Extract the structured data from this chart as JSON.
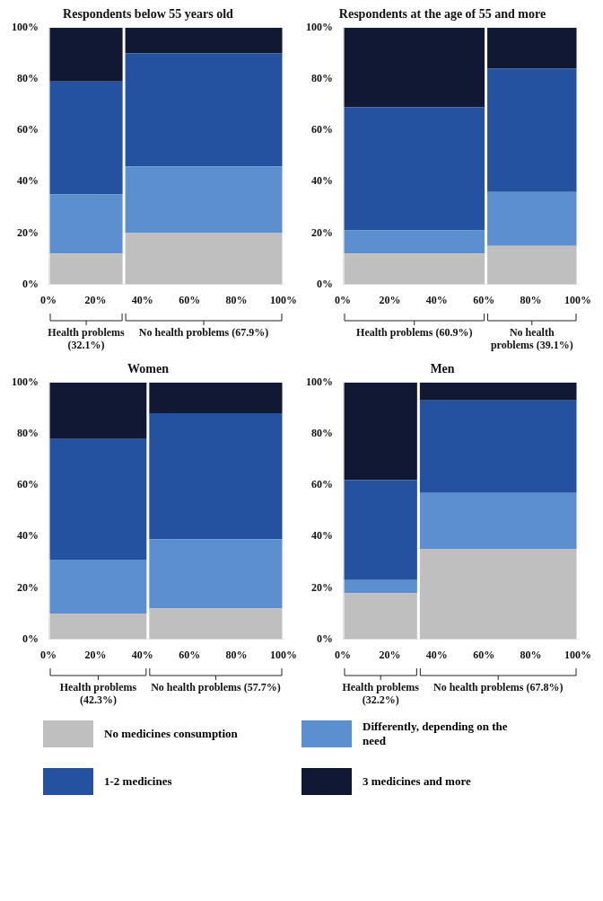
{
  "chart_data": [
    {
      "type": "bar",
      "title": "Respondents below 55 years old",
      "stacked": true,
      "x": [
        16.05,
        66.05
      ],
      "annotations": [
        "Health problems (32.1%)",
        "No health problems (67.9%)"
      ],
      "xlim": [
        0,
        100
      ],
      "xticks": [
        {
          "value": 0,
          "label": "0%"
        },
        {
          "value": 20,
          "label": "20%"
        },
        {
          "value": 40,
          "label": "40%"
        },
        {
          "value": 60,
          "label": "60%"
        },
        {
          "value": 80,
          "label": "80%"
        },
        {
          "value": 100,
          "label": "100%"
        }
      ],
      "ylim": [
        0,
        100
      ],
      "yticks": [
        {
          "value": 0,
          "label": "0%"
        },
        {
          "value": 20,
          "label": "20%"
        },
        {
          "value": 40,
          "label": "40%"
        },
        {
          "value": 60,
          "label": "60%"
        },
        {
          "value": 80,
          "label": "80%"
        },
        {
          "value": 100,
          "label": "100%"
        }
      ],
      "series": [
        {
          "color": "#bfbfbf",
          "values": [
            12,
            20
          ]
        },
        {
          "color": "#5b8fd0",
          "values": [
            23,
            26
          ]
        },
        {
          "color": "#2451a0",
          "values": [
            44,
            44
          ]
        },
        {
          "color": "#111833",
          "values": [
            21,
            10
          ]
        }
      ]
    },
    {
      "type": "bar",
      "title": "Respondents at the age of 55 and more",
      "stacked": true,
      "x": [
        30.45,
        80.45
      ],
      "annotations": [
        "Health problems (60.9%)",
        "No health problems (39.1%)"
      ],
      "xlim": [
        0,
        100
      ],
      "xticks": [
        {
          "value": 0,
          "label": "0%"
        },
        {
          "value": 20,
          "label": "20%"
        },
        {
          "value": 40,
          "label": "40%"
        },
        {
          "value": 60,
          "label": "60%"
        },
        {
          "value": 80,
          "label": "80%"
        },
        {
          "value": 100,
          "label": "100%"
        }
      ],
      "ylim": [
        0,
        100
      ],
      "yticks": [
        {
          "value": 0,
          "label": "0%"
        },
        {
          "value": 20,
          "label": "20%"
        },
        {
          "value": 40,
          "label": "40%"
        },
        {
          "value": 60,
          "label": "60%"
        },
        {
          "value": 80,
          "label": "80%"
        },
        {
          "value": 100,
          "label": "100%"
        }
      ],
      "series": [
        {
          "color": "#bfbfbf",
          "values": [
            12,
            15
          ]
        },
        {
          "color": "#5b8fd0",
          "values": [
            9,
            21
          ]
        },
        {
          "color": "#2451a0",
          "values": [
            48,
            48
          ]
        },
        {
          "color": "#111833",
          "values": [
            31,
            16
          ]
        }
      ]
    },
    {
      "type": "bar",
      "title": "Women",
      "stacked": true,
      "x": [
        21.15,
        71.15
      ],
      "annotations": [
        "Health problems (42.3%)",
        "No health problems (57.7%)"
      ],
      "xlim": [
        0,
        100
      ],
      "xticks": [
        {
          "value": 0,
          "label": "0%"
        },
        {
          "value": 20,
          "label": "20%"
        },
        {
          "value": 40,
          "label": "40%"
        },
        {
          "value": 60,
          "label": "60%"
        },
        {
          "value": 80,
          "label": "80%"
        },
        {
          "value": 100,
          "label": "100%"
        }
      ],
      "ylim": [
        0,
        100
      ],
      "yticks": [
        {
          "value": 0,
          "label": "0%"
        },
        {
          "value": 20,
          "label": "20%"
        },
        {
          "value": 40,
          "label": "40%"
        },
        {
          "value": 60,
          "label": "60%"
        },
        {
          "value": 80,
          "label": "80%"
        },
        {
          "value": 100,
          "label": "100%"
        }
      ],
      "series": [
        {
          "color": "#bfbfbf",
          "values": [
            10,
            12
          ]
        },
        {
          "color": "#5b8fd0",
          "values": [
            21,
            27
          ]
        },
        {
          "color": "#2451a0",
          "values": [
            47,
            49
          ]
        },
        {
          "color": "#111833",
          "values": [
            22,
            12
          ]
        }
      ]
    },
    {
      "type": "bar",
      "title": "Men",
      "stacked": true,
      "legend": "bottom",
      "x": [
        16.1,
        66.1
      ],
      "annotations": [
        "Health problems (32.2%)",
        "No health problems (67.8%)"
      ],
      "xlim": [
        0,
        100
      ],
      "xticks": [
        {
          "value": 0,
          "label": "0%"
        },
        {
          "value": 20,
          "label": "20%"
        },
        {
          "value": 40,
          "label": "40%"
        },
        {
          "value": 60,
          "label": "60%"
        },
        {
          "value": 80,
          "label": "80%"
        },
        {
          "value": 100,
          "label": "100%"
        }
      ],
      "ylim": [
        0,
        100
      ],
      "yticks": [
        {
          "value": 0,
          "label": "0%"
        },
        {
          "value": 20,
          "label": "20%"
        },
        {
          "value": 40,
          "label": "40%"
        },
        {
          "value": 60,
          "label": "60%"
        },
        {
          "value": 80,
          "label": "80%"
        },
        {
          "value": 100,
          "label": "100%"
        }
      ],
      "series": [
        {
          "name": "No medicines consumption",
          "color": "#bfbfbf",
          "values": [
            18,
            35
          ]
        },
        {
          "name": "Differently, depending on the need",
          "color": "#5b8fd0",
          "values": [
            5,
            22
          ]
        },
        {
          "name": "1-2 medicines",
          "color": "#2451a0",
          "values": [
            39,
            36
          ]
        },
        {
          "name": "3 medicines and more",
          "color": "#111833",
          "values": [
            38,
            7
          ]
        }
      ]
    }
  ]
}
